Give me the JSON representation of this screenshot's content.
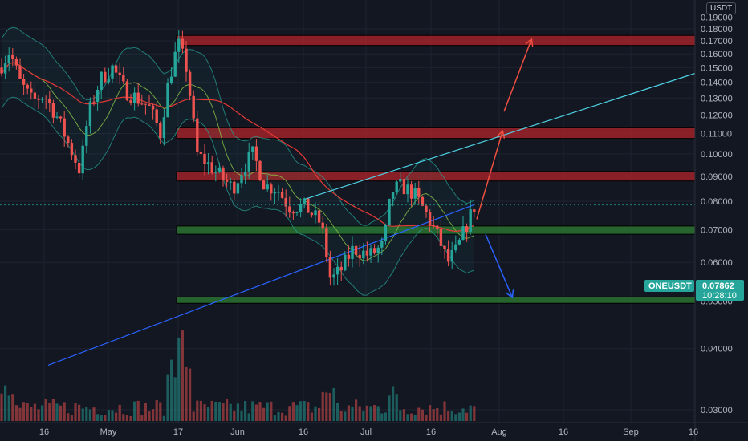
{
  "symbol": "ONEUSDT",
  "currency": "USDT",
  "last_price": "0.07862",
  "countdown": "10:28:10",
  "colors": {
    "background": "#131722",
    "grid": "#1f2331",
    "up": "#26a69a",
    "down": "#ef5350",
    "resistance_zone": "#b2242a",
    "support_zone": "#2e7d32",
    "trendline": "#4dd0e1",
    "projection_up": "#f05040",
    "projection_down": "#2962ff"
  },
  "chart_data": {
    "type": "candlestick",
    "y_axis": {
      "scale": "log",
      "ylim": [
        0.028,
        0.19
      ],
      "ticks": [
        "0.18000",
        "0.17000",
        "0.16000",
        "0.15000",
        "0.14000",
        "0.13000",
        "0.12000",
        "0.11000",
        "0.10000",
        "0.09000",
        "0.08000",
        "0.07000",
        "0.06000",
        "0.05000",
        "0.04000",
        "0.03000"
      ],
      "partial_top_tick": "0.19000"
    },
    "x_axis": {
      "labels": [
        "16",
        "May",
        "17",
        "Jun",
        "16",
        "Jul",
        "16",
        "Aug",
        "16",
        "Sep",
        "16"
      ]
    },
    "zones": [
      {
        "kind": "resistance",
        "low": 0.1665,
        "high": 0.1745
      },
      {
        "kind": "resistance",
        "low": 0.1075,
        "high": 0.113
      },
      {
        "kind": "resistance",
        "low": 0.088,
        "high": 0.092
      },
      {
        "kind": "support",
        "low": 0.0685,
        "high": 0.0712
      },
      {
        "kind": "support",
        "low": 0.0495,
        "high": 0.051
      }
    ],
    "price_pct_up": 0.35,
    "grid": true
  }
}
